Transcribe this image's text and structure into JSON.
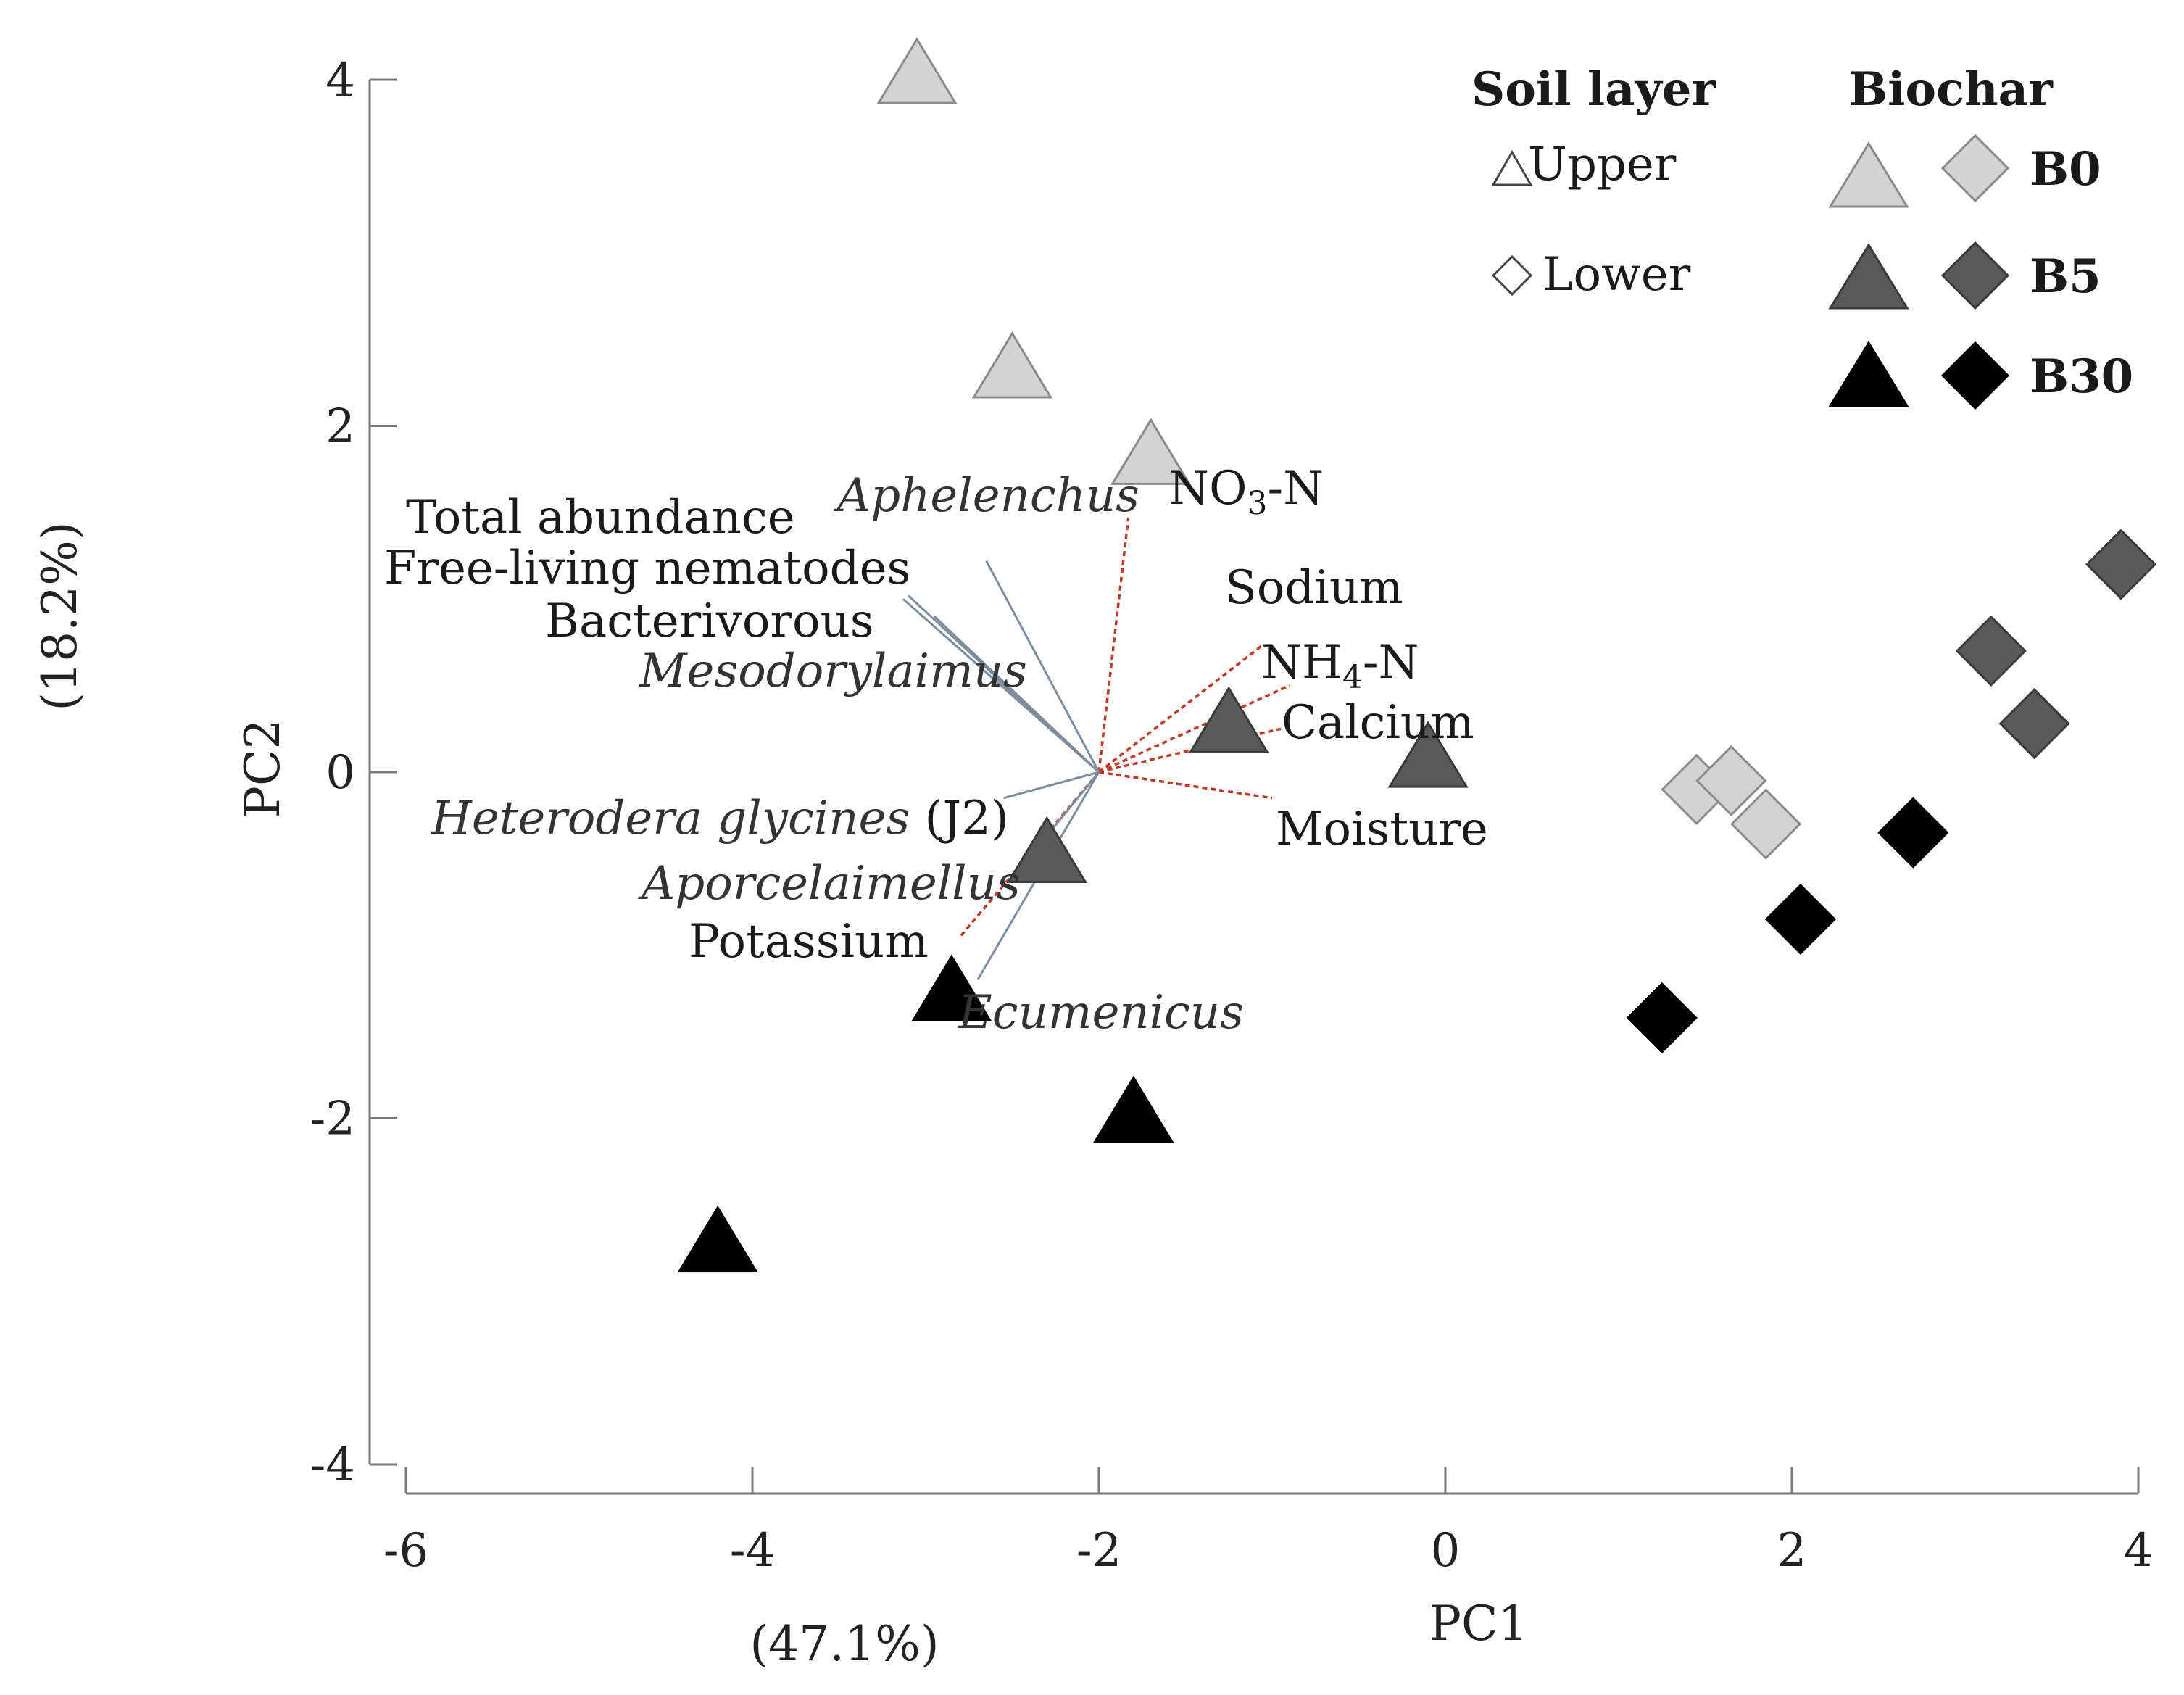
{
  "chart_data": {
    "type": "scatter",
    "title": "",
    "xlabel": "PC1",
    "xlabel_pct": "(47.1%)",
    "ylabel": "PC2",
    "ylabel_pct": "(18.2%)",
    "xlim": [
      -6,
      4
    ],
    "ylim": [
      -4,
      4
    ],
    "xticks": [
      "-6",
      "-4",
      "-2",
      "0",
      "2",
      "4"
    ],
    "yticks": [
      "4",
      "2",
      "0",
      "-2",
      "-4"
    ],
    "grid": false,
    "legend": {
      "position": "top-right",
      "soil_title": "Soil layer",
      "soil_upper": "Upper",
      "soil_lower": "Lower",
      "biochar_title": "Biochar",
      "levels": [
        "B0",
        "B5",
        "B30"
      ]
    },
    "colors": {
      "B0": "#d3d3d3",
      "B5": "#595959",
      "B30": "#000000",
      "env_vector": "#c0392b",
      "bio_vector": "#7f8c9d"
    },
    "points": [
      {
        "layer": "Upper",
        "biochar": "B0",
        "x": -3.05,
        "y": 4.05
      },
      {
        "layer": "Upper",
        "biochar": "B0",
        "x": -2.5,
        "y": 2.35
      },
      {
        "layer": "Upper",
        "biochar": "B0",
        "x": -1.7,
        "y": 1.85
      },
      {
        "layer": "Upper",
        "biochar": "B5",
        "x": -1.25,
        "y": 0.3
      },
      {
        "layer": "Upper",
        "biochar": "B5",
        "x": -0.1,
        "y": 0.1
      },
      {
        "layer": "Upper",
        "biochar": "B5",
        "x": -2.3,
        "y": -0.45
      },
      {
        "layer": "Upper",
        "biochar": "B30",
        "x": -2.85,
        "y": -1.25
      },
      {
        "layer": "Upper",
        "biochar": "B30",
        "x": -1.8,
        "y": -1.95
      },
      {
        "layer": "Upper",
        "biochar": "B30",
        "x": -4.2,
        "y": -2.7
      },
      {
        "layer": "Lower",
        "biochar": "B0",
        "x": 1.45,
        "y": -0.1
      },
      {
        "layer": "Lower",
        "biochar": "B0",
        "x": 1.65,
        "y": -0.05
      },
      {
        "layer": "Lower",
        "biochar": "B0",
        "x": 1.85,
        "y": -0.3
      },
      {
        "layer": "Lower",
        "biochar": "B5",
        "x": 3.9,
        "y": 1.2
      },
      {
        "layer": "Lower",
        "biochar": "B5",
        "x": 3.15,
        "y": 0.7
      },
      {
        "layer": "Lower",
        "biochar": "B5",
        "x": 3.4,
        "y": 0.28
      },
      {
        "layer": "Lower",
        "biochar": "B30",
        "x": 2.7,
        "y": -0.35
      },
      {
        "layer": "Lower",
        "biochar": "B30",
        "x": 2.05,
        "y": -0.85
      },
      {
        "layer": "Lower",
        "biochar": "B30",
        "x": 1.25,
        "y": -1.42
      }
    ],
    "vectors": [
      {
        "label": "NO3-N",
        "kind": "env",
        "x": -1.83,
        "y": 1.47
      },
      {
        "label": "Sodium",
        "kind": "env",
        "x": -1.06,
        "y": 0.73
      },
      {
        "label": "NH4-N",
        "kind": "env",
        "x": -0.9,
        "y": 0.5
      },
      {
        "label": "Calcium",
        "kind": "env",
        "x": -0.95,
        "y": 0.25
      },
      {
        "label": "Moisture",
        "kind": "env",
        "x": -1.0,
        "y": -0.15
      },
      {
        "label": "Potassium",
        "kind": "env",
        "x": -2.8,
        "y": -0.95
      },
      {
        "label": "Aphelenchus",
        "kind": "bio",
        "x": -2.65,
        "y": 1.22
      },
      {
        "label": "Total abundance",
        "kind": "bio",
        "x": -3.13,
        "y": 1.0
      },
      {
        "label": "Free-living nematodes",
        "kind": "bio",
        "x": -3.1,
        "y": 1.02
      },
      {
        "label": "Bacterivorous",
        "kind": "bio",
        "x": -2.95,
        "y": 0.9
      },
      {
        "label": "Mesodorylaimus",
        "kind": "bio",
        "x": -2.6,
        "y": 0.55
      },
      {
        "label": "Heterodera glycines (J2)",
        "kind": "bio",
        "x": -2.55,
        "y": -0.15
      },
      {
        "label": "Aporcelaimellus",
        "kind": "bio",
        "x": -2.45,
        "y": -0.55
      },
      {
        "label": "Ecumenicus",
        "kind": "bio",
        "x": -2.7,
        "y": -1.2
      }
    ],
    "labels": {
      "NO3": "NO",
      "NO3_sub": "3",
      "NO3_suffix": "-N",
      "Sodium": "Sodium",
      "NH4": "NH",
      "NH4_sub": "4",
      "NH4_suffix": "-N",
      "Calcium": "Calcium",
      "Moisture": "Moisture",
      "Potassium": "Potassium",
      "Aphelenchus": "Aphelenchus",
      "Total_abundance": "Total abundance",
      "Free_living": "Free-living nematodes",
      "Bacterivorous": "Bacterivorous",
      "Mesodorylaimus": "Mesodorylaimus",
      "Heterodera": "Heterodera glycines",
      "Heterodera_suffix": " (J2)",
      "Aporcelaimellus": "Aporcelaimellus",
      "Ecumenicus": "Ecumenicus"
    }
  }
}
